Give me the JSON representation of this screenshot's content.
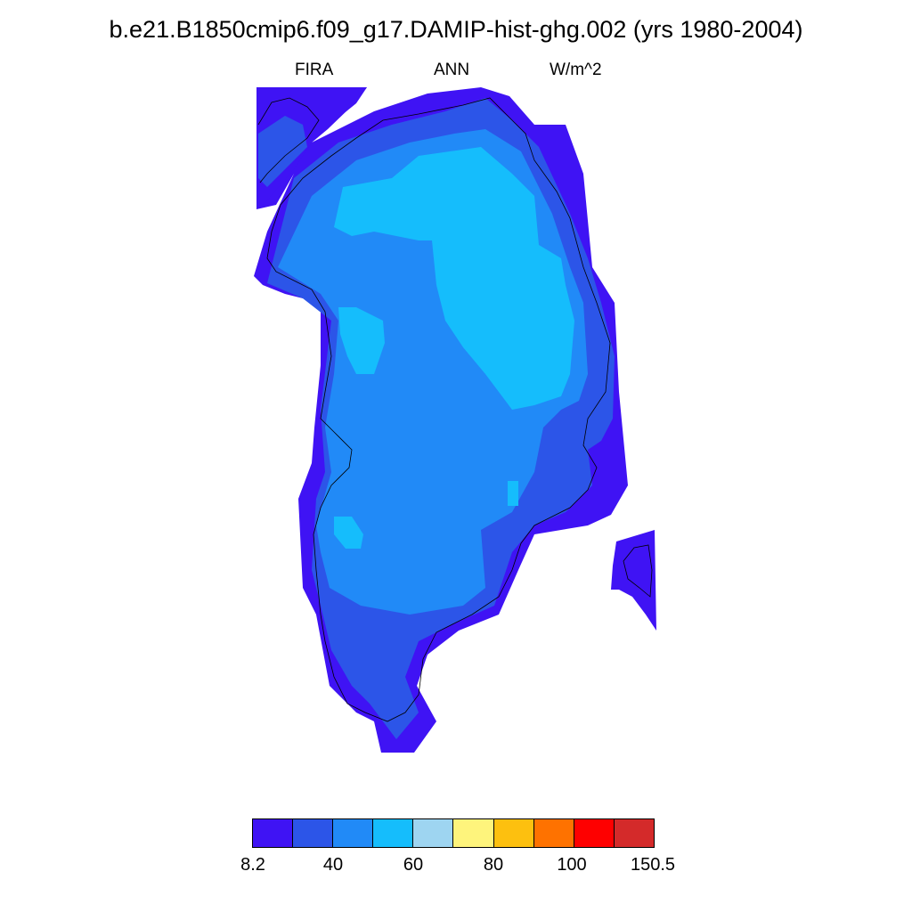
{
  "title": "b.e21.B1850cmip6.f09_g17.DAMIP-hist-ghg.002 (yrs 1980-2004)",
  "subtitle": {
    "left": "FIRA",
    "center": "ANN",
    "right": "W/m^2"
  },
  "colorbar": {
    "colors": [
      "#3f13f4",
      "#2c55e8",
      "#218af7",
      "#15bdfc",
      "#9ed5f1",
      "#fef47c",
      "#fdc00f",
      "#fe7200",
      "#fe0000",
      "#d42a2a"
    ],
    "labels": [
      "8.2",
      "40",
      "60",
      "80",
      "100",
      "150.5"
    ]
  }
}
